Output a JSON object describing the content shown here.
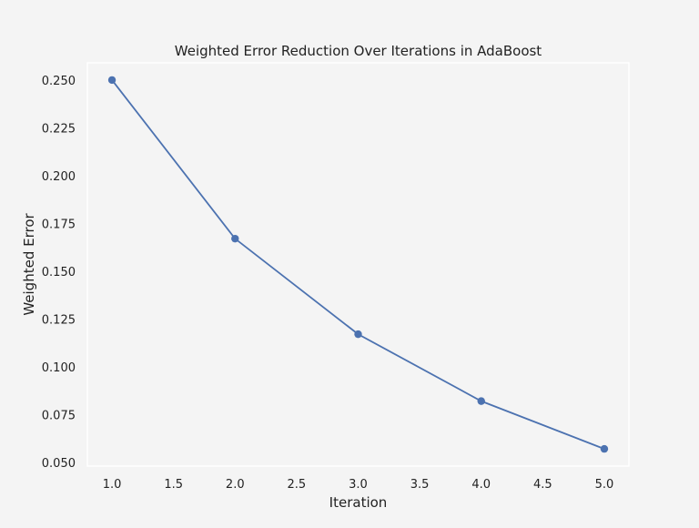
{
  "chart_data": {
    "type": "line",
    "title": "Weighted Error Reduction Over Iterations in AdaBoost",
    "xlabel": "Iteration",
    "ylabel": "Weighted Error",
    "x": [
      1.0,
      2.0,
      3.0,
      4.0,
      5.0
    ],
    "series": [
      {
        "values": [
          0.25,
          0.167,
          0.117,
          0.082,
          0.057
        ]
      }
    ],
    "xlim": [
      0.8,
      5.2
    ],
    "ylim": [
      0.048,
      0.259
    ],
    "xticks": [
      "1.0",
      "1.5",
      "2.0",
      "2.5",
      "3.0",
      "3.5",
      "4.0",
      "4.5",
      "5.0"
    ],
    "yticks": [
      "0.050",
      "0.075",
      "0.100",
      "0.125",
      "0.150",
      "0.175",
      "0.200",
      "0.225",
      "0.250"
    ],
    "grid": false,
    "marker": "circle",
    "colors": {
      "line": "#4c72b0",
      "background": "#f4f4f4",
      "plot_background": "#f4f4f4",
      "axes_frame": "#ffffff",
      "text": "#222222"
    }
  }
}
